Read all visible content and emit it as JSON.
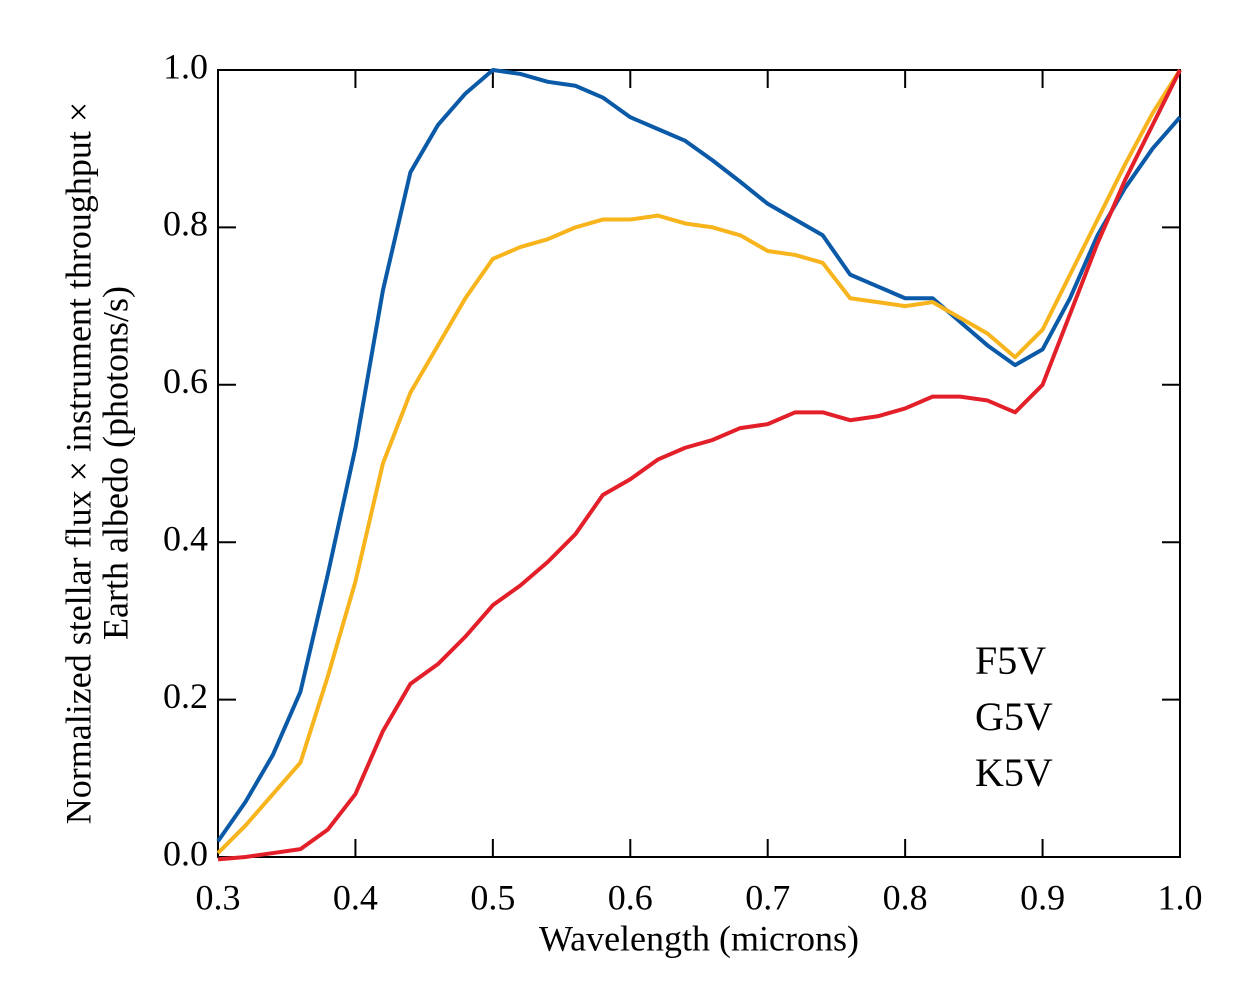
{
  "chart_data": {
    "type": "line",
    "xlabel": "Wavelength (microns)",
    "ylabel": [
      "Normalized stellar flux × instrument throughput ×",
      "Earth albedo (photons/s)"
    ],
    "x": [
      0.3,
      0.32,
      0.34,
      0.36,
      0.38,
      0.4,
      0.42,
      0.44,
      0.46,
      0.48,
      0.5,
      0.52,
      0.54,
      0.56,
      0.58,
      0.6,
      0.62,
      0.64,
      0.66,
      0.68,
      0.7,
      0.72,
      0.74,
      0.76,
      0.78,
      0.8,
      0.82,
      0.84,
      0.86,
      0.88,
      0.9,
      0.92,
      0.94,
      0.96,
      0.98,
      1.0
    ],
    "series": [
      {
        "name": "F5V",
        "color": "#0a5aa8",
        "values": [
          0.02,
          0.07,
          0.13,
          0.21,
          0.36,
          0.52,
          0.72,
          0.87,
          0.93,
          0.97,
          1.0,
          0.995,
          0.985,
          0.98,
          0.965,
          0.94,
          0.925,
          0.91,
          0.885,
          0.858,
          0.83,
          0.81,
          0.79,
          0.74,
          0.725,
          0.71,
          0.71,
          0.68,
          0.65,
          0.625,
          0.645,
          0.71,
          0.79,
          0.85,
          0.9,
          0.94
        ]
      },
      {
        "name": "G5V",
        "color": "#f7b41c",
        "values": [
          0.005,
          0.04,
          0.08,
          0.12,
          0.23,
          0.35,
          0.5,
          0.59,
          0.65,
          0.71,
          0.76,
          0.775,
          0.785,
          0.8,
          0.81,
          0.81,
          0.815,
          0.805,
          0.8,
          0.79,
          0.77,
          0.765,
          0.755,
          0.71,
          0.705,
          0.7,
          0.705,
          0.685,
          0.665,
          0.635,
          0.67,
          0.74,
          0.81,
          0.88,
          0.945,
          1.0
        ]
      },
      {
        "name": "K5V",
        "color": "#e3202a",
        "values": [
          -0.003,
          0.0,
          0.005,
          0.01,
          0.035,
          0.08,
          0.16,
          0.22,
          0.245,
          0.28,
          0.32,
          0.345,
          0.375,
          0.41,
          0.46,
          0.48,
          0.505,
          0.52,
          0.53,
          0.545,
          0.55,
          0.565,
          0.565,
          0.555,
          0.56,
          0.57,
          0.585,
          0.585,
          0.58,
          0.565,
          0.6,
          0.69,
          0.78,
          0.86,
          0.93,
          1.0
        ]
      }
    ],
    "xlim": [
      0.3,
      1.0
    ],
    "xticks": [
      0.3,
      0.4,
      0.5,
      0.6,
      0.7,
      0.8,
      0.9,
      {
        "value": 1.0,
        "label": "1.0"
      }
    ],
    "ylim": [
      0,
      1.0
    ],
    "yticks": [
      {
        "value": 0,
        "label": "0.0"
      },
      0.2,
      0.4,
      0.6,
      0.8,
      {
        "value": 1.0,
        "label": "1.0"
      }
    ],
    "grid": false,
    "legend_loc": "lower right"
  }
}
